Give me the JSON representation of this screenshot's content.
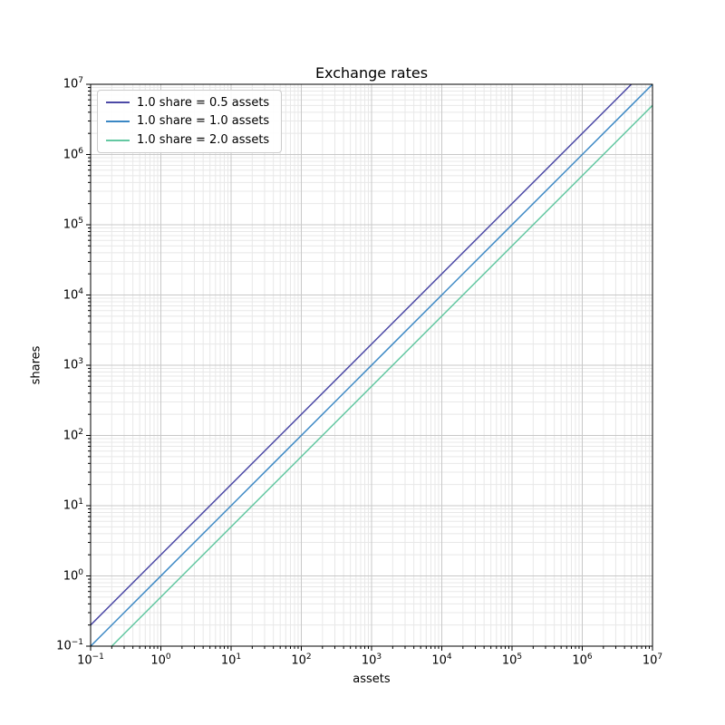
{
  "figure": {
    "background_color": "#ffffff"
  },
  "chart_data": {
    "type": "line",
    "title": "Exchange rates",
    "xlabel": "assets",
    "ylabel": "shares",
    "x_scale": "log",
    "y_scale": "log",
    "x_range_exponents": [
      -1,
      7
    ],
    "y_range_exponents": [
      -1,
      7
    ],
    "x_tick_exponents": [
      -1,
      0,
      1,
      2,
      3,
      4,
      5,
      6,
      7
    ],
    "y_tick_exponents": [
      -1,
      0,
      1,
      2,
      3,
      4,
      5,
      6,
      7
    ],
    "grid": "both-major-and-minor",
    "legend_position": "upper-left",
    "series": [
      {
        "name": "1.0 share = 0.5 assets",
        "assets_per_share": 0.5,
        "relation": "shares = assets / 0.5",
        "color": "#4c49a6",
        "endpoints_assets_shares": [
          [
            0.1,
            0.2
          ],
          [
            5000000,
            10000000
          ]
        ]
      },
      {
        "name": "1.0 share = 1.0 assets",
        "assets_per_share": 1.0,
        "relation": "shares = assets / 1.0",
        "color": "#3a87c4",
        "endpoints_assets_shares": [
          [
            0.1,
            0.1
          ],
          [
            10000000,
            10000000
          ]
        ]
      },
      {
        "name": "1.0 share = 2.0 assets",
        "assets_per_share": 2.0,
        "relation": "shares = assets / 2.0",
        "color": "#64c8a2",
        "endpoints_assets_shares": [
          [
            0.2,
            0.1
          ],
          [
            10000000,
            5000000
          ]
        ]
      }
    ],
    "style": {
      "spine_color": "#000000",
      "tick_color": "#000000",
      "major_grid_color": "#c8c8c8",
      "minor_grid_color": "#e8e8e8",
      "plot_background": "#ffffff",
      "line_width": 1.5
    }
  }
}
